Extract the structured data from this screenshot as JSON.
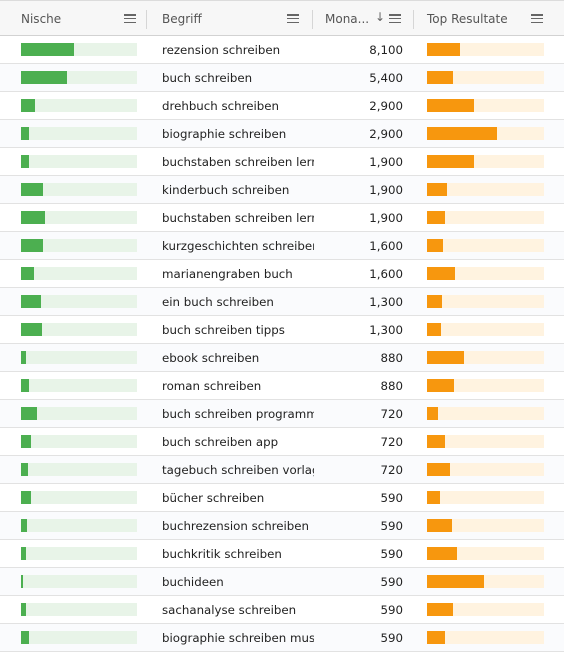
{
  "colors": {
    "niche_fill": "#4caf50",
    "niche_track": "#e8f4e8",
    "top_fill": "#f7970e",
    "top_track": "#fff3e0"
  },
  "header": {
    "niche": {
      "label": "Nische",
      "menu_icon": "menu-icon"
    },
    "term": {
      "label": "Begriff",
      "menu_icon": "menu-icon"
    },
    "volume": {
      "label": "Mona...",
      "sort_icon": "sort-down-icon",
      "menu_icon": "menu-icon"
    },
    "top": {
      "label": "Top Resultate",
      "menu_icon": "menu-icon"
    }
  },
  "rows": [
    {
      "term": "rezension schreiben",
      "volume": "8,100",
      "niche": 0.46,
      "top": 0.28
    },
    {
      "term": "buch schreiben",
      "volume": "5,400",
      "niche": 0.4,
      "top": 0.22
    },
    {
      "term": "drehbuch schreiben",
      "volume": "2,900",
      "niche": 0.12,
      "top": 0.4
    },
    {
      "term": "biographie schreiben",
      "volume": "2,900",
      "niche": 0.07,
      "top": 0.6
    },
    {
      "term": "buchstaben schreiben lernen",
      "volume": "1,900",
      "niche": 0.07,
      "top": 0.4
    },
    {
      "term": "kinderbuch schreiben",
      "volume": "1,900",
      "niche": 0.19,
      "top": 0.17
    },
    {
      "term": "buchstaben schreiben lernen",
      "volume": "1,900",
      "niche": 0.21,
      "top": 0.15
    },
    {
      "term": "kurzgeschichten schreiben",
      "volume": "1,600",
      "niche": 0.19,
      "top": 0.14
    },
    {
      "term": "marianengraben buch",
      "volume": "1,600",
      "niche": 0.11,
      "top": 0.24
    },
    {
      "term": "ein buch schreiben",
      "volume": "1,300",
      "niche": 0.17,
      "top": 0.13
    },
    {
      "term": "buch schreiben tipps",
      "volume": "1,300",
      "niche": 0.18,
      "top": 0.12
    },
    {
      "term": "ebook schreiben",
      "volume": "880",
      "niche": 0.04,
      "top": 0.32
    },
    {
      "term": "roman schreiben",
      "volume": "880",
      "niche": 0.07,
      "top": 0.23
    },
    {
      "term": "buch schreiben programm",
      "volume": "720",
      "niche": 0.14,
      "top": 0.09
    },
    {
      "term": "buch schreiben app",
      "volume": "720",
      "niche": 0.09,
      "top": 0.15
    },
    {
      "term": "tagebuch schreiben vorlage",
      "volume": "720",
      "niche": 0.06,
      "top": 0.2
    },
    {
      "term": "bücher schreiben",
      "volume": "590",
      "niche": 0.09,
      "top": 0.11
    },
    {
      "term": "buchrezension schreiben",
      "volume": "590",
      "niche": 0.05,
      "top": 0.21
    },
    {
      "term": "buchkritik schreiben",
      "volume": "590",
      "niche": 0.04,
      "top": 0.26
    },
    {
      "term": "buchideen",
      "volume": "590",
      "niche": 0.02,
      "top": 0.49
    },
    {
      "term": "sachanalyse schreiben",
      "volume": "590",
      "niche": 0.04,
      "top": 0.22
    },
    {
      "term": "biographie schreiben muster",
      "volume": "590",
      "niche": 0.07,
      "top": 0.15
    }
  ]
}
